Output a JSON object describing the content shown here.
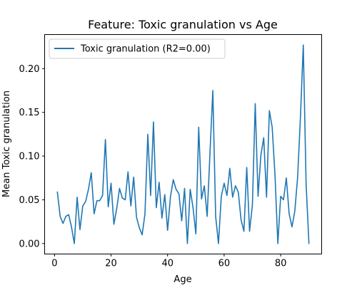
{
  "chart_data": {
    "type": "line",
    "title": "Feature: Toxic granulation vs Age",
    "xlabel": "Age",
    "ylabel": "Mean Toxic granulation",
    "xlim": [
      -3.5,
      94.5
    ],
    "ylim": [
      -0.012,
      0.239
    ],
    "xticks": [
      "0",
      "20",
      "40",
      "60",
      "80"
    ],
    "yticks": [
      "0.00",
      "0.05",
      "0.10",
      "0.15",
      "0.20"
    ],
    "grid": false,
    "legend_position": "top-left",
    "series": [
      {
        "name": "Toxic granulation (R2=0.00)",
        "color": "#1f77b4",
        "x": [
          1,
          2,
          3,
          4,
          5,
          6,
          7,
          8,
          9,
          10,
          11,
          12,
          13,
          14,
          15,
          16,
          17,
          18,
          19,
          20,
          21,
          22,
          23,
          24,
          25,
          26,
          27,
          28,
          29,
          30,
          31,
          32,
          33,
          34,
          35,
          36,
          37,
          38,
          39,
          40,
          41,
          42,
          43,
          44,
          45,
          46,
          47,
          48,
          49,
          50,
          51,
          52,
          53,
          54,
          55,
          56,
          57,
          58,
          59,
          60,
          61,
          62,
          63,
          64,
          65,
          66,
          67,
          68,
          69,
          70,
          71,
          72,
          73,
          74,
          75,
          76,
          77,
          78,
          79,
          80,
          81,
          82,
          83,
          84,
          85,
          86,
          87,
          88,
          89,
          90
        ],
        "y": [
          0.059,
          0.031,
          0.023,
          0.031,
          0.033,
          0.019,
          0.0,
          0.053,
          0.016,
          0.043,
          0.048,
          0.062,
          0.081,
          0.034,
          0.049,
          0.049,
          0.055,
          0.119,
          0.042,
          0.069,
          0.022,
          0.04,
          0.063,
          0.052,
          0.05,
          0.082,
          0.043,
          0.076,
          0.03,
          0.018,
          0.01,
          0.034,
          0.125,
          0.055,
          0.139,
          0.041,
          0.07,
          0.029,
          0.056,
          0.015,
          0.053,
          0.073,
          0.062,
          0.057,
          0.026,
          0.063,
          0.0,
          0.062,
          0.041,
          0.011,
          0.133,
          0.051,
          0.066,
          0.031,
          0.104,
          0.175,
          0.031,
          0.0,
          0.054,
          0.069,
          0.055,
          0.086,
          0.053,
          0.066,
          0.059,
          0.027,
          0.014,
          0.087,
          0.014,
          0.044,
          0.16,
          0.054,
          0.101,
          0.121,
          0.053,
          0.152,
          0.133,
          0.078,
          0.0,
          0.054,
          0.05,
          0.075,
          0.034,
          0.019,
          0.037,
          0.076,
          0.145,
          0.227,
          0.068,
          0.0
        ]
      }
    ]
  }
}
